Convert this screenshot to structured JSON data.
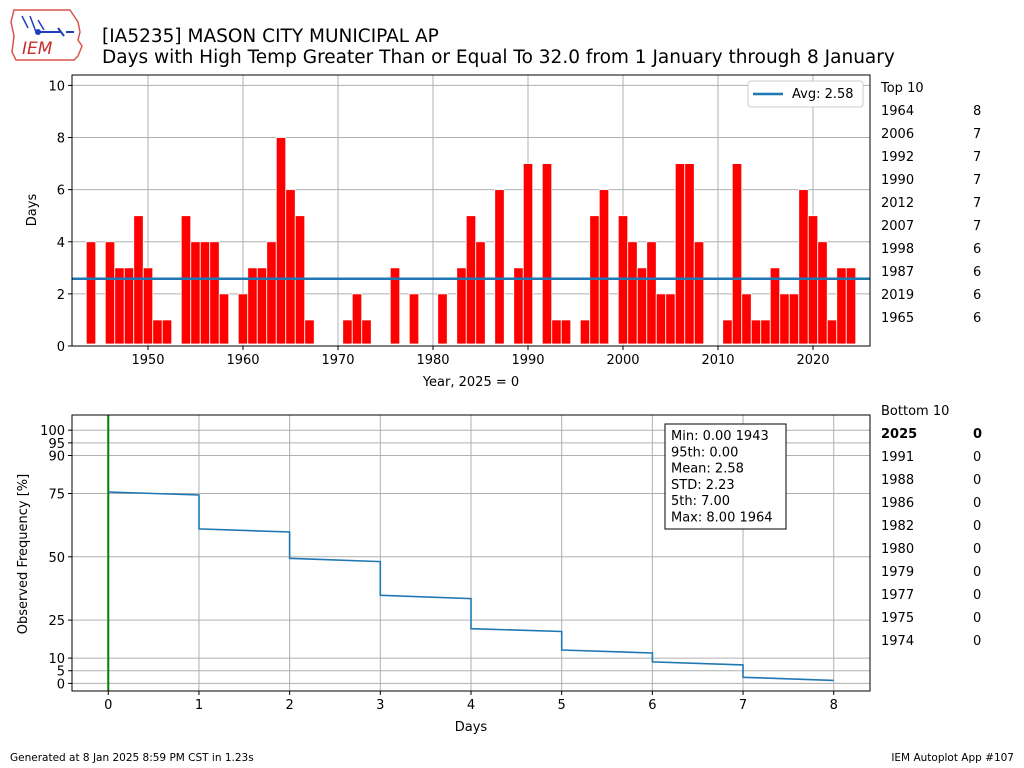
{
  "header": {
    "logo_text": "IEM",
    "title_line1": "[IA5235] MASON CITY MUNICIPAL AP",
    "title_line2": "Days with High Temp Greater Than or Equal To 32.0 from 1 January through 8 January"
  },
  "footer": {
    "left": "Generated at 8 Jan 2025 8:59 PM CST in 1.23s",
    "right": "IEM Autoplot App #107"
  },
  "colors": {
    "bar": "#ff0000",
    "avg_line": "#1f77b4",
    "cdf_line": "#1f77b4",
    "current_line": "#008000",
    "grid": "#b0b0b0"
  },
  "chart_data": [
    {
      "type": "bar",
      "xlabel": "Year, 2025 = 0",
      "ylabel": "Days",
      "xlim": [
        1942,
        2026
      ],
      "ylim": [
        0,
        10.4
      ],
      "xticks": [
        1950,
        1960,
        1970,
        1980,
        1990,
        2000,
        2010,
        2020
      ],
      "yticks": [
        0,
        2,
        4,
        6,
        8,
        10
      ],
      "grid": true,
      "legend": {
        "label": "Avg: 2.58",
        "position": "top-right"
      },
      "avg": 2.58,
      "years": [
        1943,
        1944,
        1945,
        1946,
        1947,
        1948,
        1949,
        1950,
        1951,
        1952,
        1953,
        1954,
        1955,
        1956,
        1957,
        1958,
        1959,
        1960,
        1961,
        1962,
        1963,
        1964,
        1965,
        1966,
        1967,
        1968,
        1969,
        1970,
        1971,
        1972,
        1973,
        1974,
        1975,
        1976,
        1977,
        1978,
        1979,
        1980,
        1981,
        1982,
        1983,
        1984,
        1985,
        1986,
        1987,
        1988,
        1989,
        1990,
        1991,
        1992,
        1993,
        1994,
        1995,
        1996,
        1997,
        1998,
        1999,
        2000,
        2001,
        2002,
        2003,
        2004,
        2005,
        2006,
        2007,
        2008,
        2009,
        2010,
        2011,
        2012,
        2013,
        2014,
        2015,
        2016,
        2017,
        2018,
        2019,
        2020,
        2021,
        2022,
        2023,
        2024,
        2025
      ],
      "values": [
        0,
        4,
        0,
        4,
        3,
        3,
        5,
        3,
        1,
        1,
        0,
        5,
        4,
        4,
        4,
        2,
        0,
        2,
        3,
        3,
        4,
        8,
        6,
        5,
        1,
        0,
        0,
        0,
        1,
        2,
        1,
        0,
        0,
        3,
        0,
        2,
        0,
        0,
        2,
        0,
        3,
        5,
        4,
        0,
        6,
        0,
        3,
        7,
        0,
        7,
        1,
        1,
        0,
        1,
        5,
        6,
        0,
        5,
        4,
        3,
        4,
        2,
        2,
        7,
        7,
        4,
        0,
        0,
        1,
        7,
        2,
        1,
        1,
        3,
        2,
        2,
        6,
        5,
        4,
        1,
        3,
        3,
        0
      ]
    },
    {
      "type": "line",
      "xlabel": "Days",
      "ylabel": "Observed Frequency [%]",
      "xlim": [
        -0.4,
        8.4
      ],
      "ylim": [
        -3,
        106
      ],
      "xticks": [
        0,
        1,
        2,
        3,
        4,
        5,
        6,
        7,
        8
      ],
      "yticks": [
        0,
        5,
        10,
        25,
        50,
        75,
        90,
        95,
        100
      ],
      "grid": true,
      "current_value": 0,
      "series": [
        {
          "x": [
            0,
            1,
            1,
            2,
            2,
            3,
            3,
            4,
            4,
            5,
            5,
            6,
            6,
            7,
            7,
            8
          ],
          "y": [
            75.6,
            74.4,
            61.0,
            59.8,
            49.4,
            48.1,
            34.8,
            33.5,
            21.6,
            20.5,
            13.2,
            12.0,
            8.5,
            7.3,
            2.4,
            1.2
          ]
        }
      ],
      "stats_box": [
        "Min: 0.00 1943",
        "95th: 0.00",
        "Mean: 2.58",
        "STD: 2.23",
        "5th: 7.00",
        "Max: 8.00 1964"
      ]
    }
  ],
  "top10": {
    "header": "Top 10",
    "rows": [
      {
        "year": "1964",
        "value": "8"
      },
      {
        "year": "2006",
        "value": "7"
      },
      {
        "year": "1992",
        "value": "7"
      },
      {
        "year": "1990",
        "value": "7"
      },
      {
        "year": "2012",
        "value": "7"
      },
      {
        "year": "2007",
        "value": "7"
      },
      {
        "year": "1998",
        "value": "6"
      },
      {
        "year": "1987",
        "value": "6"
      },
      {
        "year": "2019",
        "value": "6"
      },
      {
        "year": "1965",
        "value": "6"
      }
    ]
  },
  "bottom10": {
    "header": "Bottom 10",
    "rows": [
      {
        "year": "2025",
        "value": "0",
        "bold": true
      },
      {
        "year": "1991",
        "value": "0"
      },
      {
        "year": "1988",
        "value": "0"
      },
      {
        "year": "1986",
        "value": "0"
      },
      {
        "year": "1982",
        "value": "0"
      },
      {
        "year": "1980",
        "value": "0"
      },
      {
        "year": "1979",
        "value": "0"
      },
      {
        "year": "1977",
        "value": "0"
      },
      {
        "year": "1975",
        "value": "0"
      },
      {
        "year": "1974",
        "value": "0"
      }
    ]
  }
}
